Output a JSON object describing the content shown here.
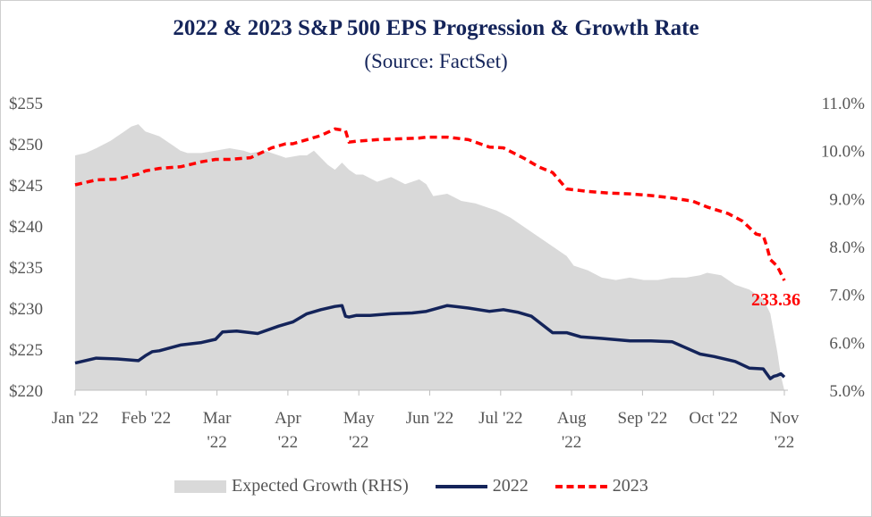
{
  "chart_data": {
    "type": "line",
    "title": "2022 & 2023 S&P 500 EPS Progression & Growth Rate",
    "subtitle": "(Source: FactSet)",
    "left_axis": {
      "ticks": [
        "$255",
        "$250",
        "$245",
        "$240",
        "$235",
        "$230",
        "$225",
        "$220"
      ],
      "range": [
        220,
        255
      ]
    },
    "right_axis": {
      "ticks": [
        "11.0%",
        "10.0%",
        "9.0%",
        "8.0%",
        "7.0%",
        "6.0%",
        "5.0%"
      ],
      "range": [
        5.0,
        11.0
      ]
    },
    "x_ticks": [
      {
        "label": "Jan '22",
        "t": 0
      },
      {
        "label": "Feb '22",
        "t": 1
      },
      {
        "label": "Mar\n'22",
        "t": 2
      },
      {
        "label": "Apr\n'22",
        "t": 3
      },
      {
        "label": "May\n'22",
        "t": 4
      },
      {
        "label": "Jun '22",
        "t": 5
      },
      {
        "label": "Jul '22",
        "t": 6
      },
      {
        "label": "Aug\n'22",
        "t": 7
      },
      {
        "label": "Sep '22",
        "t": 8
      },
      {
        "label": "Oct '22",
        "t": 9
      },
      {
        "label": "Nov\n'22",
        "t": 10
      }
    ],
    "x_range": [
      0,
      10.1
    ],
    "series": [
      {
        "name": "Expected Growth (RHS)",
        "axis": "right",
        "style": "area",
        "color": "#d9d9d9",
        "x": [
          0,
          0.15,
          0.3,
          0.5,
          0.7,
          0.8,
          0.9,
          1.0,
          1.2,
          1.4,
          1.5,
          1.6,
          1.8,
          2.0,
          2.2,
          2.4,
          2.5,
          2.7,
          2.9,
          3.0,
          3.2,
          3.3,
          3.4,
          3.5,
          3.6,
          3.7,
          3.8,
          3.9,
          4.0,
          4.1,
          4.3,
          4.5,
          4.7,
          4.9,
          5.0,
          5.1,
          5.3,
          5.5,
          5.7,
          5.9,
          6.0,
          6.2,
          6.4,
          6.6,
          6.8,
          7.0,
          7.1,
          7.3,
          7.5,
          7.7,
          7.9,
          8.1,
          8.3,
          8.5,
          8.7,
          8.9,
          9.0,
          9.2,
          9.4,
          9.6,
          9.8,
          9.9,
          10.0,
          10.05,
          10.1
        ],
        "y": [
          9.9,
          9.95,
          10.05,
          10.2,
          10.4,
          10.5,
          10.55,
          10.4,
          10.3,
          10.1,
          10.0,
          9.95,
          9.95,
          10.0,
          10.05,
          10.0,
          9.95,
          10.0,
          9.9,
          9.85,
          9.9,
          9.9,
          10.0,
          9.85,
          9.7,
          9.6,
          9.75,
          9.6,
          9.5,
          9.5,
          9.35,
          9.45,
          9.3,
          9.4,
          9.3,
          9.05,
          9.1,
          8.95,
          8.9,
          8.8,
          8.75,
          8.6,
          8.4,
          8.2,
          8.0,
          7.8,
          7.6,
          7.5,
          7.35,
          7.3,
          7.35,
          7.3,
          7.3,
          7.35,
          7.35,
          7.4,
          7.45,
          7.4,
          7.2,
          7.1,
          6.9,
          6.6,
          5.8,
          5.3,
          5.0
        ]
      },
      {
        "name": "2022",
        "axis": "left",
        "style": "solid",
        "color": "#14245a",
        "x": [
          0,
          0.3,
          0.6,
          0.9,
          1.0,
          1.1,
          1.2,
          1.5,
          1.8,
          2.0,
          2.1,
          2.3,
          2.6,
          2.9,
          3.1,
          3.3,
          3.5,
          3.7,
          3.8,
          3.85,
          3.9,
          4.0,
          4.2,
          4.5,
          4.8,
          5.0,
          5.3,
          5.6,
          5.9,
          6.1,
          6.3,
          6.5,
          6.8,
          7.0,
          7.2,
          7.5,
          7.9,
          8.2,
          8.5,
          8.9,
          9.1,
          9.4,
          9.6,
          9.8,
          9.9,
          9.95,
          10.0,
          10.05,
          10.1
        ],
        "y": [
          223.3,
          223.9,
          223.8,
          223.6,
          224.2,
          224.7,
          224.8,
          225.5,
          225.8,
          226.2,
          227.1,
          227.2,
          226.9,
          227.8,
          228.3,
          229.3,
          229.8,
          230.2,
          230.3,
          229.0,
          228.9,
          229.1,
          229.1,
          229.3,
          229.4,
          229.6,
          230.3,
          230.0,
          229.6,
          229.8,
          229.5,
          229.0,
          227.0,
          227.0,
          226.5,
          226.3,
          226.0,
          226.0,
          225.9,
          224.4,
          224.1,
          223.5,
          222.7,
          222.6,
          221.4,
          221.7,
          221.8,
          222.0,
          221.6
        ]
      },
      {
        "name": "2023",
        "axis": "left",
        "style": "dashed",
        "color": "#ff0000",
        "x": [
          0,
          0.3,
          0.6,
          0.9,
          1.0,
          1.2,
          1.5,
          1.8,
          2.0,
          2.2,
          2.5,
          2.8,
          3.0,
          3.1,
          3.3,
          3.5,
          3.7,
          3.85,
          3.9,
          4.0,
          4.3,
          4.6,
          4.9,
          5.0,
          5.3,
          5.6,
          5.9,
          6.1,
          6.4,
          6.6,
          6.8,
          7.0,
          7.3,
          7.6,
          7.9,
          8.2,
          8.5,
          8.8,
          9.0,
          9.3,
          9.5,
          9.7,
          9.8,
          9.85,
          9.9,
          10.0,
          10.1
        ],
        "y": [
          245.0,
          245.6,
          245.7,
          246.3,
          246.7,
          247.0,
          247.2,
          247.8,
          248.1,
          248.1,
          248.3,
          249.5,
          250.0,
          250.0,
          250.5,
          251.0,
          251.8,
          251.6,
          250.2,
          250.3,
          250.5,
          250.6,
          250.7,
          250.8,
          250.8,
          250.5,
          249.6,
          249.5,
          248.2,
          247.2,
          246.5,
          244.5,
          244.2,
          244.0,
          243.9,
          243.7,
          243.4,
          243.0,
          242.3,
          241.5,
          240.6,
          239.0,
          238.8,
          237.5,
          235.9,
          235.1,
          233.36
        ]
      }
    ],
    "annotation": {
      "text": "233.36",
      "color": "#ff0000",
      "series": "2023"
    },
    "legend_position": "bottom",
    "grid": false
  },
  "legend": {
    "area_label": "Expected Growth (RHS)",
    "s2022_label": "2022",
    "s2023_label": "2023"
  }
}
